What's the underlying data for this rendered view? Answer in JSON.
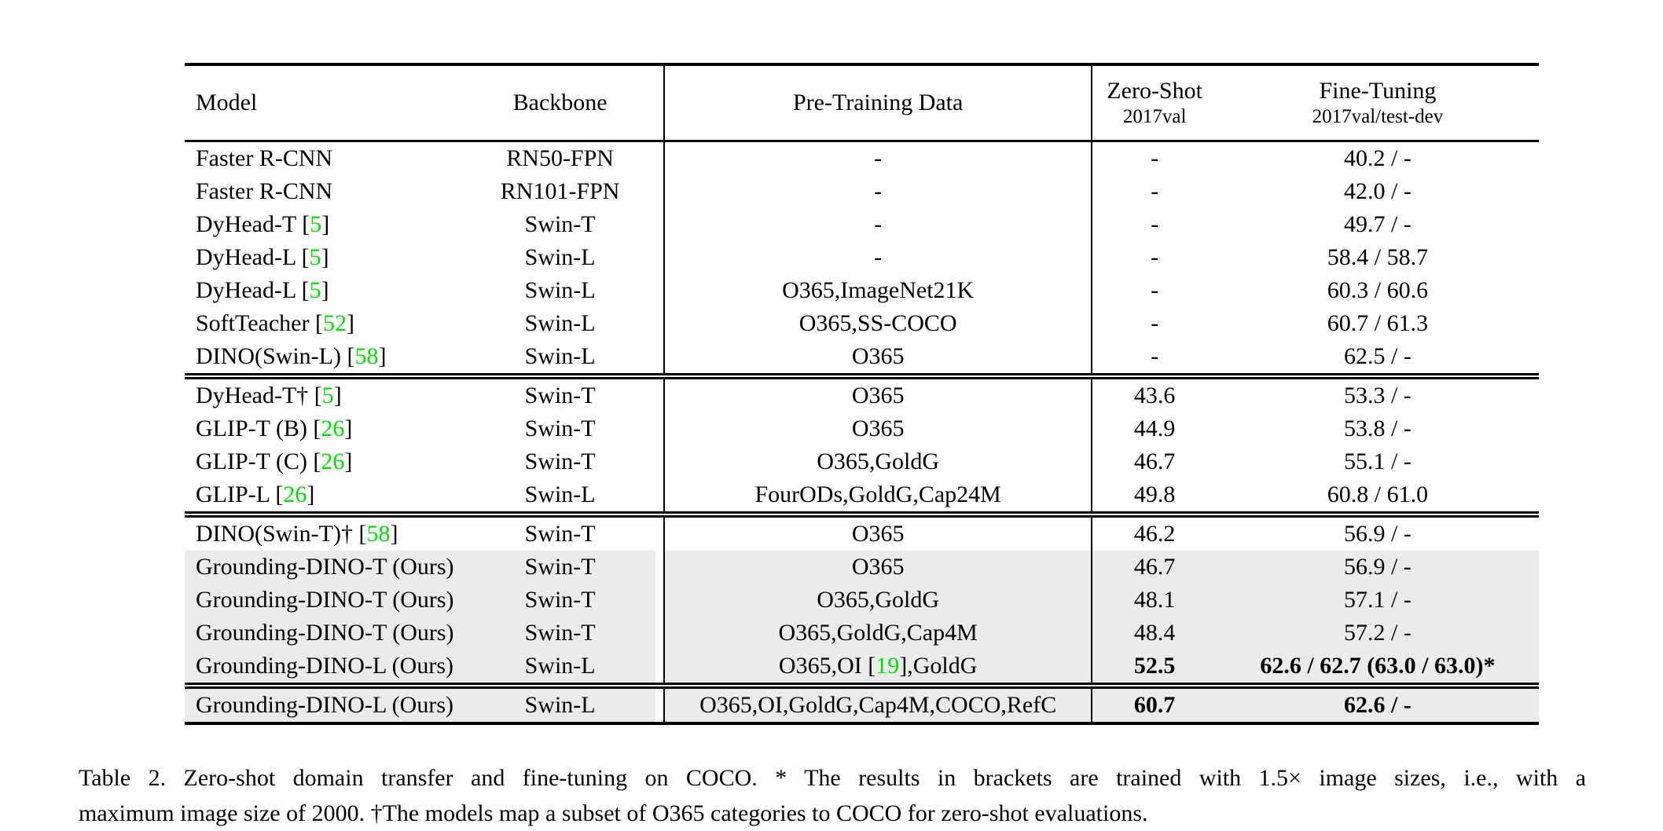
{
  "colors": {
    "citation_green": "#00e000",
    "row_shade": "#ebebeb",
    "text": "#000000",
    "background": "#ffffff"
  },
  "table": {
    "columns": {
      "model": {
        "label": "Model",
        "sub": ""
      },
      "backbone": {
        "label": "Backbone",
        "sub": ""
      },
      "pretrain": {
        "label": "Pre-Training Data",
        "sub": ""
      },
      "zeroshot": {
        "label": "Zero-Shot",
        "sub": "2017val"
      },
      "finetune": {
        "label": "Fine-Tuning",
        "sub": "2017val/test-dev"
      }
    },
    "sections": [
      {
        "rows": [
          {
            "model": "Faster R-CNN",
            "backbone": "RN50-FPN",
            "pretrain": "-",
            "zeroshot": "-",
            "finetune": "40.2 / -"
          },
          {
            "model": "Faster R-CNN",
            "backbone": "RN101-FPN",
            "pretrain": "-",
            "zeroshot": "-",
            "finetune": "42.0 / -"
          },
          {
            "model": "DyHead-T [{5}]",
            "backbone": "Swin-T",
            "pretrain": "-",
            "zeroshot": "-",
            "finetune": "49.7 / -"
          },
          {
            "model": "DyHead-L [{5}]",
            "backbone": "Swin-L",
            "pretrain": "-",
            "zeroshot": "-",
            "finetune": "58.4 / 58.7"
          },
          {
            "model": "DyHead-L [{5}]",
            "backbone": "Swin-L",
            "pretrain": "O365,ImageNet21K",
            "zeroshot": "-",
            "finetune": "60.3 / 60.6"
          },
          {
            "model": "SoftTeacher [{52}]",
            "backbone": "Swin-L",
            "pretrain": "O365,SS-COCO",
            "zeroshot": "-",
            "finetune": "60.7 / 61.3"
          },
          {
            "model": "DINO(Swin-L) [{58}]",
            "backbone": "Swin-L",
            "pretrain": "O365",
            "zeroshot": "-",
            "finetune": "62.5 / -"
          }
        ]
      },
      {
        "rows": [
          {
            "model": "DyHead-T† [{5}]",
            "backbone": "Swin-T",
            "pretrain": "O365",
            "zeroshot": "43.6",
            "finetune": "53.3 / -"
          },
          {
            "model": "GLIP-T (B) [{26}]",
            "backbone": "Swin-T",
            "pretrain": "O365",
            "zeroshot": "44.9",
            "finetune": "53.8 / -"
          },
          {
            "model": "GLIP-T (C) [{26}]",
            "backbone": "Swin-T",
            "pretrain": "O365,GoldG",
            "zeroshot": "46.7",
            "finetune": "55.1 / -"
          },
          {
            "model": "GLIP-L [{26}]",
            "backbone": "Swin-L",
            "pretrain": "FourODs,GoldG,Cap24M",
            "zeroshot": "49.8",
            "finetune": "60.8 / 61.0"
          }
        ]
      },
      {
        "rows": [
          {
            "model": "DINO(Swin-T)† [{58}]",
            "backbone": "Swin-T",
            "pretrain": "O365",
            "zeroshot": "46.2",
            "finetune": "56.9 / -"
          },
          {
            "model": "Grounding-DINO-T (Ours)",
            "backbone": "Swin-T",
            "pretrain": "O365",
            "zeroshot": "46.7",
            "finetune": "56.9 / -",
            "shaded": true
          },
          {
            "model": "Grounding-DINO-T (Ours)",
            "backbone": "Swin-T",
            "pretrain": "O365,GoldG",
            "zeroshot": "48.1",
            "finetune": "57.1 / -",
            "shaded": true
          },
          {
            "model": "Grounding-DINO-T (Ours)",
            "backbone": "Swin-T",
            "pretrain": "O365,GoldG,Cap4M",
            "zeroshot": "48.4",
            "finetune": "57.2 / -",
            "shaded": true
          },
          {
            "model": "Grounding-DINO-L (Ours)",
            "backbone": "Swin-L",
            "pretrain": "O365,OI [{19}],GoldG",
            "zeroshot": "52.5",
            "finetune": "62.6 / 62.7 (63.0 / 63.0)*",
            "shaded": true,
            "bold": true
          }
        ]
      },
      {
        "rows": [
          {
            "model": "Grounding-DINO-L (Ours)",
            "backbone": "Swin-L",
            "pretrain": "O365,OI,GoldG,Cap4M,COCO,RefC",
            "zeroshot": "60.7",
            "finetune": "62.6 / -",
            "shaded": true,
            "bold": true
          }
        ]
      }
    ]
  },
  "caption": {
    "line1": "Table 2.  Zero-shot domain transfer and fine-tuning on COCO. * The results in brackets are trained with 1.5× image sizes, i.e., with a",
    "line2": "maximum image size of 2000. †The models map a subset of O365 categories to COCO for zero-shot evaluations."
  }
}
